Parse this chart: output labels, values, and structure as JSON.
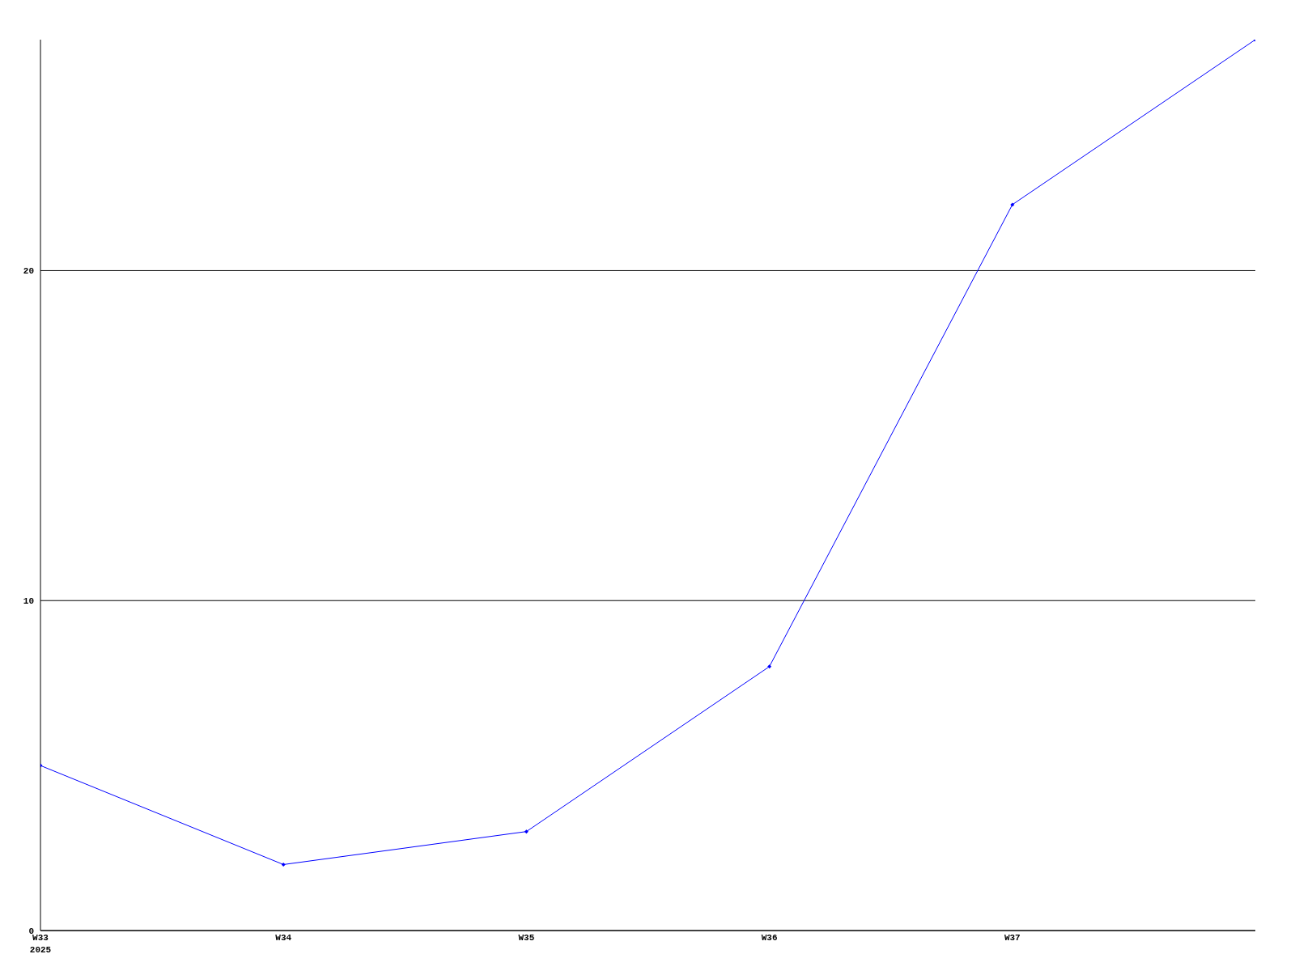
{
  "chart_data": {
    "type": "line",
    "categories": [
      "W33\n2025",
      "W34",
      "W35",
      "W36",
      "W37",
      null
    ],
    "series": [
      {
        "color": "#0000ff",
        "values": [
          5,
          2,
          3,
          8,
          22,
          27
        ]
      }
    ],
    "ylim": [
      0,
      27
    ],
    "yticks": [
      0,
      10,
      20
    ],
    "grid": "y",
    "marker": "diamond",
    "line_style": "solid"
  }
}
